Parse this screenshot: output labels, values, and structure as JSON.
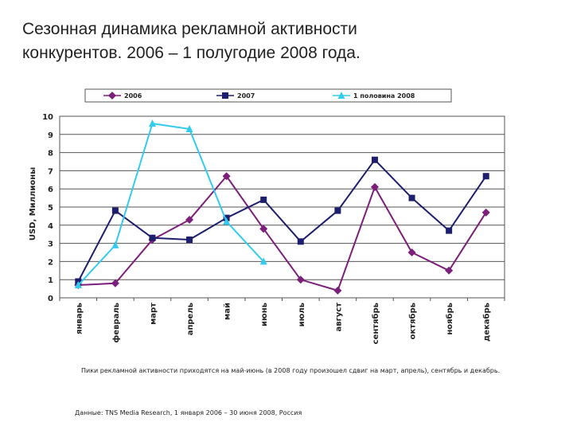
{
  "slide": {
    "title_line1": "Сезонная динамика рекламной активности",
    "title_line2": "конкурентов. 2006 – 1 полугодие 2008 года.",
    "note": "Пики рекламной активности приходятся на май-июнь (в 2008 году произошел сдвиг на март, апрель), сентябрь и декабрь.",
    "source": "Данные: TNS Media Research, 1 января 2006 – 30 июня 2008, Россия"
  },
  "chart_data": {
    "type": "line",
    "title": "",
    "xlabel": "",
    "ylabel": "USD, Миллионы",
    "ylim": [
      0,
      10
    ],
    "yticks": [
      0,
      1,
      2,
      3,
      4,
      5,
      6,
      7,
      8,
      9,
      10
    ],
    "grid": true,
    "legend_position": "top",
    "categories": [
      "январь",
      "февраль",
      "март",
      "апрель",
      "май",
      "июнь",
      "июль",
      "август",
      "сентябрь",
      "октябрь",
      "ноябрь",
      "декабрь"
    ],
    "series": [
      {
        "name": "2006",
        "color": "#7b1f7b",
        "marker": "diamond",
        "values": [
          0.7,
          0.8,
          3.2,
          4.3,
          6.7,
          3.8,
          1.0,
          0.4,
          6.1,
          2.5,
          1.5,
          4.7
        ]
      },
      {
        "name": "2007",
        "color": "#1e1e6e",
        "marker": "square",
        "values": [
          0.9,
          4.8,
          3.3,
          3.2,
          4.4,
          5.4,
          3.1,
          4.8,
          7.6,
          5.5,
          3.7,
          6.7
        ]
      },
      {
        "name": "1 половина 2008",
        "color": "#33ccee",
        "marker": "triangle",
        "values": [
          0.7,
          2.9,
          9.6,
          9.3,
          4.2,
          2.0,
          null,
          null,
          null,
          null,
          null,
          null
        ]
      }
    ]
  }
}
